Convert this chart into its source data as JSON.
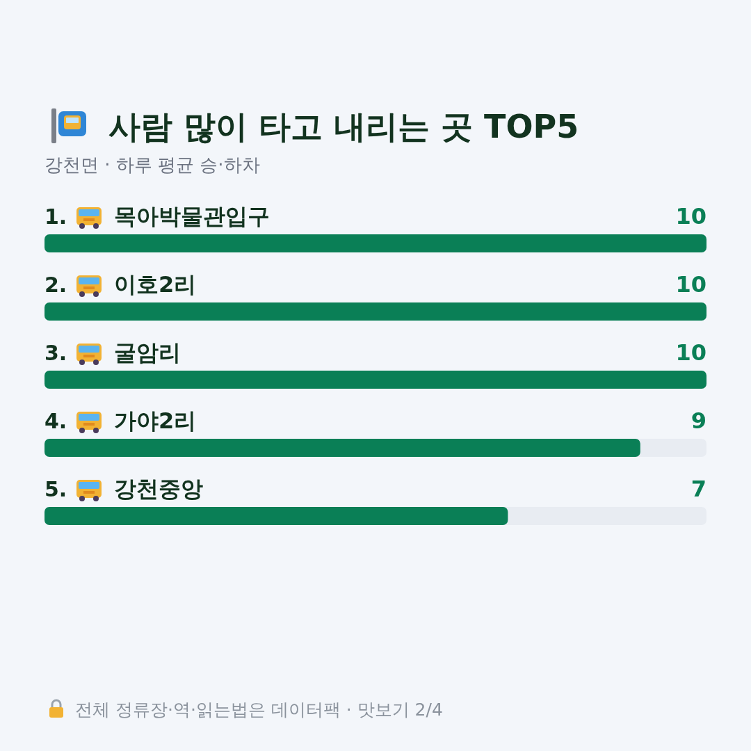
{
  "chart_data": {
    "type": "bar",
    "orientation": "horizontal",
    "title": "사람 많이 타고 내리는 곳 TOP5",
    "subtitle": "강천면 · 하루 평균 승·하차",
    "categories": [
      "1. 목아박물관입구",
      "2. 이호2리",
      "3. 굴암리",
      "4. 가야2리",
      "5. 강천중앙"
    ],
    "values": [
      10,
      10,
      10,
      9,
      7
    ],
    "color": "#0a7f56",
    "data_labels": true,
    "annotations": [
      "전체 정류장·역·읽는법은 데이터팩 · 맛보기 2/4"
    ]
  }
}
